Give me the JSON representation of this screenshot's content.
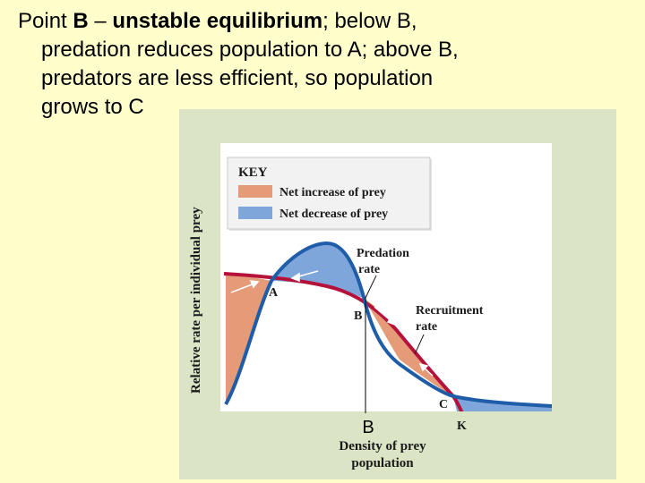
{
  "caption": {
    "line1_prefix": "Point ",
    "line1_bold_b": "B",
    "line1_dash": " – ",
    "line1_bold_phrase": "unstable equilibrium",
    "line1_suffix": "; below B,",
    "line2": "predation reduces population to A; above B,",
    "line3": "predators are less efficient, so population",
    "line4": "grows to C"
  },
  "figure": {
    "key": {
      "title": "KEY",
      "items": [
        {
          "label": "Net increase of prey",
          "color": "#E59A78"
        },
        {
          "label": "Net decrease of prey",
          "color": "#7EA6DB"
        }
      ]
    },
    "curves": {
      "predation_rate": {
        "label_line1": "Predation",
        "label_line2": "rate",
        "color": "#1F5DA8"
      },
      "recruitment_rate": {
        "label_line1": "Recruitment",
        "label_line2": "rate",
        "color": "#B5123B"
      }
    },
    "points": {
      "a": "A",
      "b": "B",
      "c": "C",
      "k": "K"
    },
    "y_axis_label": "Relative rate per individual prey",
    "x_axis_label_line1": "Density of prey",
    "x_axis_label_line2": "population",
    "b_marker": "B"
  },
  "colors": {
    "background": "#FFFFCC",
    "panel": "#DCE4C6",
    "increase_fill": "#E59A78",
    "decrease_fill": "#7EA6DB",
    "predation_curve": "#1F5DA8",
    "recruitment_curve": "#B5123B"
  }
}
